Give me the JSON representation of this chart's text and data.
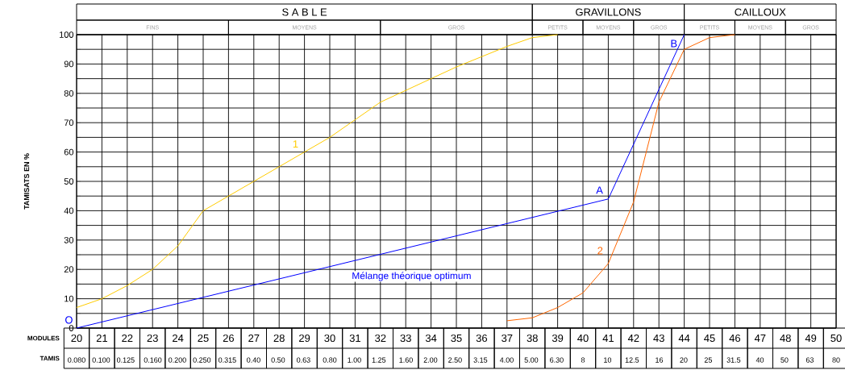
{
  "chart_data": {
    "type": "line",
    "xlabel": "MODULES",
    "x2label": "TAMIS",
    "ylabel": "TAMISATS EN %",
    "xlim": [
      20,
      50
    ],
    "ylim": [
      0,
      100
    ],
    "xticks": [
      20,
      21,
      22,
      23,
      24,
      25,
      26,
      27,
      28,
      29,
      30,
      31,
      32,
      33,
      34,
      35,
      36,
      37,
      38,
      39,
      40,
      41,
      42,
      43,
      44,
      45,
      46,
      47,
      48,
      49,
      50
    ],
    "x2lim": [
      0.08,
      80
    ],
    "log": "x2",
    "x2ticks": [
      {
        "value": 0.08,
        "label": "0.080"
      },
      {
        "value": 0.1,
        "label": "0.100"
      },
      0.125,
      {
        "value": 0.16,
        "label": "0.160"
      },
      {
        "value": 0.2,
        "label": "0.200"
      },
      {
        "value": 0.25,
        "label": "0.250"
      },
      0.315,
      {
        "value": 0.4,
        "label": "0.40"
      },
      {
        "value": 0.5,
        "label": "0.50"
      },
      0.63,
      {
        "value": 0.8,
        "label": "0.80"
      },
      {
        "value": 1,
        "label": "1.00"
      },
      1.25,
      {
        "value": 1.6,
        "label": "1.60"
      },
      {
        "value": 2,
        "label": "2.00"
      },
      {
        "value": 2.5,
        "label": "2.50"
      },
      3.15,
      {
        "value": 4,
        "label": "4.00"
      },
      {
        "value": 5,
        "label": "5.00"
      },
      {
        "value": 6.3,
        "label": "6.30"
      },
      8,
      10,
      12.5,
      16,
      20,
      25,
      31.5,
      40,
      50,
      63,
      80
    ],
    "yticks": [
      0,
      {
        "value": 5,
        "label": null
      },
      10,
      {
        "value": 15,
        "label": null
      },
      20,
      {
        "value": 25,
        "label": null
      },
      30,
      {
        "value": 35,
        "label": null
      },
      40,
      {
        "value": 45,
        "label": null
      },
      50,
      {
        "value": 55,
        "label": null
      },
      60,
      {
        "value": 65,
        "label": null
      },
      70,
      {
        "value": 75,
        "label": null
      },
      80,
      {
        "value": 85,
        "label": null
      },
      90,
      {
        "value": 95,
        "label": null
      },
      100
    ],
    "grid": true,
    "annotations": [
      {
        "text": "O",
        "x": 20,
        "y": 0
      },
      {
        "text": "A",
        "x": 41,
        "y": 44
      },
      {
        "text": "B",
        "x": 44,
        "y": 100
      },
      "S A B L E",
      "GRAVILLONS",
      "CAILLOUX",
      "FINS",
      "MOYENS",
      "GROS",
      "PETITS",
      "MOYENS",
      "GROS",
      "PETITS",
      "MOYENS",
      "GROS"
    ],
    "series": [
      {
        "name": "1",
        "color": "#ffcc00",
        "x": [
          20,
          21,
          22,
          23,
          24,
          25,
          26,
          27,
          28,
          29,
          30,
          31,
          32,
          33,
          34,
          35,
          36,
          37,
          38,
          39
        ],
        "values": [
          7,
          10,
          14.5,
          20,
          28,
          40,
          45,
          50,
          55,
          60,
          65,
          71,
          77,
          81,
          85,
          89,
          92.5,
          96,
          99,
          100
        ]
      },
      {
        "name": "2",
        "color": "#ff6600",
        "x": [
          37,
          38,
          39,
          40,
          41,
          42,
          43,
          44,
          45,
          46
        ],
        "values": [
          2.5,
          3.5,
          7,
          12,
          22,
          43,
          77,
          95,
          99,
          100
        ]
      },
      {
        "name": "Mélange théorique optimum",
        "color": "#0000ff",
        "x": [
          20,
          41,
          44
        ],
        "values": [
          0,
          44,
          100
        ]
      }
    ]
  }
}
